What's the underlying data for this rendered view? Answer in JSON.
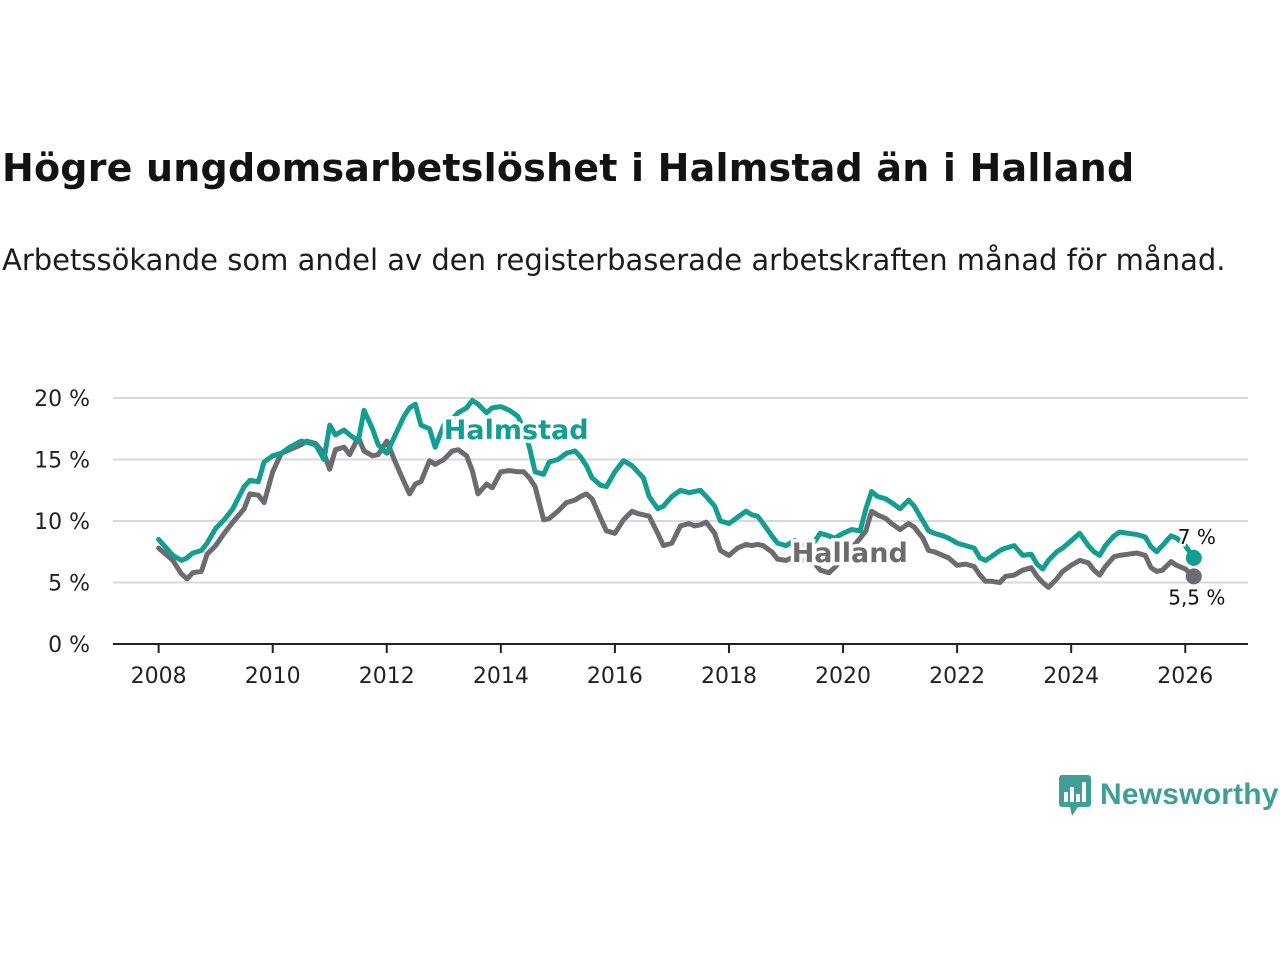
{
  "title": "Högre ungdomsarbetslöshet i Halmstad än i Halland",
  "subtitle": "Arbetssökande som andel av den registerbaserade arbetskraften månad för månad.",
  "brand": {
    "name": "Newsworthy",
    "color": "#3f9f97",
    "icon": "bar-chart-speech-bubble-icon"
  },
  "chart_data": {
    "type": "line",
    "title": "Högre ungdomsarbetslöshet i Halmstad än i Halland",
    "xlabel": "",
    "ylabel": "",
    "ylim": [
      0,
      20
    ],
    "xlim": [
      2007.2,
      2027.1
    ],
    "y_ticks": [
      0,
      5,
      10,
      15,
      20
    ],
    "y_tick_labels": [
      "0 %",
      "5 %",
      "10 %",
      "15 %",
      "20 %"
    ],
    "x_ticks": [
      2008,
      2010,
      2012,
      2014,
      2016,
      2018,
      2020,
      2022,
      2024,
      2026
    ],
    "x_tick_labels": [
      "2008",
      "2010",
      "2012",
      "2014",
      "2016",
      "2018",
      "2020",
      "2022",
      "2024",
      "2026"
    ],
    "grid": true,
    "series": [
      {
        "name": "Halland",
        "color": "#6b6b70",
        "end_label": "5,5 %",
        "points": [
          [
            2008.0,
            7.8
          ],
          [
            2008.25,
            6.8
          ],
          [
            2008.4,
            5.7
          ],
          [
            2008.5,
            5.3
          ],
          [
            2008.6,
            5.8
          ],
          [
            2008.75,
            5.9
          ],
          [
            2008.85,
            7.3
          ],
          [
            2009.0,
            8.0
          ],
          [
            2009.15,
            9.0
          ],
          [
            2009.3,
            9.9
          ],
          [
            2009.5,
            11.0
          ],
          [
            2009.6,
            12.2
          ],
          [
            2009.75,
            12.1
          ],
          [
            2009.85,
            11.5
          ],
          [
            2010.0,
            14.0
          ],
          [
            2010.15,
            15.5
          ],
          [
            2010.3,
            15.8
          ],
          [
            2010.5,
            16.2
          ],
          [
            2010.6,
            16.5
          ],
          [
            2010.75,
            16.3
          ],
          [
            2010.9,
            15.5
          ],
          [
            2011.0,
            14.2
          ],
          [
            2011.1,
            15.8
          ],
          [
            2011.25,
            16.0
          ],
          [
            2011.35,
            15.4
          ],
          [
            2011.5,
            16.8
          ],
          [
            2011.6,
            15.7
          ],
          [
            2011.75,
            15.3
          ],
          [
            2011.85,
            15.4
          ],
          [
            2012.0,
            16.5
          ],
          [
            2012.15,
            14.8
          ],
          [
            2012.3,
            13.2
          ],
          [
            2012.4,
            12.2
          ],
          [
            2012.5,
            13.0
          ],
          [
            2012.6,
            13.2
          ],
          [
            2012.75,
            14.9
          ],
          [
            2012.85,
            14.6
          ],
          [
            2013.0,
            15.0
          ],
          [
            2013.15,
            15.7
          ],
          [
            2013.25,
            15.8
          ],
          [
            2013.4,
            15.3
          ],
          [
            2013.5,
            14.1
          ],
          [
            2013.6,
            12.2
          ],
          [
            2013.75,
            13.0
          ],
          [
            2013.85,
            12.7
          ],
          [
            2014.0,
            14.0
          ],
          [
            2014.15,
            14.1
          ],
          [
            2014.3,
            14.0
          ],
          [
            2014.4,
            14.0
          ],
          [
            2014.5,
            13.5
          ],
          [
            2014.6,
            12.8
          ],
          [
            2014.75,
            10.1
          ],
          [
            2014.85,
            10.2
          ],
          [
            2015.0,
            10.8
          ],
          [
            2015.15,
            11.5
          ],
          [
            2015.3,
            11.7
          ],
          [
            2015.4,
            12.0
          ],
          [
            2015.5,
            12.2
          ],
          [
            2015.6,
            11.8
          ],
          [
            2015.75,
            10.2
          ],
          [
            2015.85,
            9.2
          ],
          [
            2016.0,
            9.0
          ],
          [
            2016.15,
            10.1
          ],
          [
            2016.3,
            10.8
          ],
          [
            2016.4,
            10.6
          ],
          [
            2016.5,
            10.5
          ],
          [
            2016.6,
            10.4
          ],
          [
            2016.75,
            9.0
          ],
          [
            2016.85,
            8.0
          ],
          [
            2017.0,
            8.2
          ],
          [
            2017.15,
            9.6
          ],
          [
            2017.3,
            9.8
          ],
          [
            2017.4,
            9.6
          ],
          [
            2017.5,
            9.7
          ],
          [
            2017.6,
            9.9
          ],
          [
            2017.75,
            9.0
          ],
          [
            2017.85,
            7.6
          ],
          [
            2018.0,
            7.2
          ],
          [
            2018.15,
            7.8
          ],
          [
            2018.3,
            8.1
          ],
          [
            2018.4,
            8.0
          ],
          [
            2018.5,
            8.1
          ],
          [
            2018.6,
            8.0
          ],
          [
            2018.75,
            7.5
          ],
          [
            2018.85,
            6.9
          ],
          [
            2019.0,
            6.8
          ],
          [
            2019.15,
            7.1
          ],
          [
            2019.3,
            6.8
          ],
          [
            2019.5,
            6.6
          ],
          [
            2019.6,
            6.0
          ],
          [
            2019.75,
            5.8
          ],
          [
            2019.85,
            6.2
          ],
          [
            2020.0,
            7.0
          ],
          [
            2020.15,
            7.8
          ],
          [
            2020.3,
            8.6
          ],
          [
            2020.4,
            9.2
          ],
          [
            2020.5,
            10.8
          ],
          [
            2020.6,
            10.5
          ],
          [
            2020.75,
            10.2
          ],
          [
            2020.85,
            9.8
          ],
          [
            2021.0,
            9.3
          ],
          [
            2021.15,
            9.8
          ],
          [
            2021.25,
            9.5
          ],
          [
            2021.4,
            8.6
          ],
          [
            2021.5,
            7.6
          ],
          [
            2021.6,
            7.5
          ],
          [
            2021.75,
            7.2
          ],
          [
            2021.85,
            7.0
          ],
          [
            2022.0,
            6.4
          ],
          [
            2022.15,
            6.5
          ],
          [
            2022.3,
            6.3
          ],
          [
            2022.4,
            5.6
          ],
          [
            2022.5,
            5.1
          ],
          [
            2022.6,
            5.1
          ],
          [
            2022.75,
            5.0
          ],
          [
            2022.85,
            5.5
          ],
          [
            2023.0,
            5.6
          ],
          [
            2023.15,
            6.0
          ],
          [
            2023.3,
            6.2
          ],
          [
            2023.4,
            5.5
          ],
          [
            2023.5,
            5.0
          ],
          [
            2023.6,
            4.6
          ],
          [
            2023.75,
            5.3
          ],
          [
            2023.85,
            5.9
          ],
          [
            2024.0,
            6.4
          ],
          [
            2024.15,
            6.8
          ],
          [
            2024.3,
            6.6
          ],
          [
            2024.4,
            6.0
          ],
          [
            2024.5,
            5.6
          ],
          [
            2024.6,
            6.3
          ],
          [
            2024.75,
            7.1
          ],
          [
            2024.85,
            7.2
          ],
          [
            2025.0,
            7.3
          ],
          [
            2025.15,
            7.4
          ],
          [
            2025.3,
            7.2
          ],
          [
            2025.4,
            6.2
          ],
          [
            2025.5,
            5.9
          ],
          [
            2025.6,
            6.0
          ],
          [
            2025.75,
            6.7
          ],
          [
            2025.85,
            6.4
          ],
          [
            2026.0,
            6.1
          ],
          [
            2026.15,
            5.5
          ]
        ]
      },
      {
        "name": "Halmstad",
        "color": "#149e91",
        "end_label": "7 %",
        "points": [
          [
            2008.0,
            8.5
          ],
          [
            2008.25,
            7.2
          ],
          [
            2008.4,
            6.8
          ],
          [
            2008.5,
            7.0
          ],
          [
            2008.6,
            7.4
          ],
          [
            2008.75,
            7.6
          ],
          [
            2008.85,
            8.2
          ],
          [
            2009.0,
            9.4
          ],
          [
            2009.15,
            10.1
          ],
          [
            2009.3,
            11.0
          ],
          [
            2009.5,
            12.8
          ],
          [
            2009.6,
            13.3
          ],
          [
            2009.75,
            13.2
          ],
          [
            2009.85,
            14.8
          ],
          [
            2010.0,
            15.3
          ],
          [
            2010.15,
            15.5
          ],
          [
            2010.3,
            16.0
          ],
          [
            2010.5,
            16.5
          ],
          [
            2010.6,
            16.4
          ],
          [
            2010.75,
            16.2
          ],
          [
            2010.9,
            15.0
          ],
          [
            2011.0,
            17.8
          ],
          [
            2011.1,
            17.0
          ],
          [
            2011.25,
            17.4
          ],
          [
            2011.35,
            17.0
          ],
          [
            2011.5,
            16.5
          ],
          [
            2011.6,
            19.0
          ],
          [
            2011.75,
            17.5
          ],
          [
            2011.85,
            16.2
          ],
          [
            2012.0,
            15.5
          ],
          [
            2012.15,
            17.0
          ],
          [
            2012.3,
            18.5
          ],
          [
            2012.4,
            19.2
          ],
          [
            2012.5,
            19.5
          ],
          [
            2012.6,
            17.8
          ],
          [
            2012.75,
            17.5
          ],
          [
            2012.85,
            16.0
          ],
          [
            2013.0,
            17.8
          ],
          [
            2013.15,
            18.3
          ],
          [
            2013.25,
            18.8
          ],
          [
            2013.4,
            19.2
          ],
          [
            2013.5,
            19.8
          ],
          [
            2013.6,
            19.5
          ],
          [
            2013.75,
            18.8
          ],
          [
            2013.85,
            19.2
          ],
          [
            2014.0,
            19.3
          ],
          [
            2014.15,
            19.0
          ],
          [
            2014.3,
            18.5
          ],
          [
            2014.4,
            17.5
          ],
          [
            2014.5,
            16.0
          ],
          [
            2014.6,
            14.0
          ],
          [
            2014.75,
            13.8
          ],
          [
            2014.85,
            14.8
          ],
          [
            2015.0,
            15.0
          ],
          [
            2015.15,
            15.5
          ],
          [
            2015.3,
            15.7
          ],
          [
            2015.4,
            15.2
          ],
          [
            2015.5,
            14.5
          ],
          [
            2015.6,
            13.5
          ],
          [
            2015.75,
            12.9
          ],
          [
            2015.85,
            12.8
          ],
          [
            2016.0,
            14.0
          ],
          [
            2016.15,
            14.9
          ],
          [
            2016.3,
            14.5
          ],
          [
            2016.4,
            14.0
          ],
          [
            2016.5,
            13.5
          ],
          [
            2016.6,
            12.0
          ],
          [
            2016.75,
            11.0
          ],
          [
            2016.85,
            11.2
          ],
          [
            2017.0,
            12.0
          ],
          [
            2017.15,
            12.5
          ],
          [
            2017.3,
            12.3
          ],
          [
            2017.4,
            12.4
          ],
          [
            2017.5,
            12.5
          ],
          [
            2017.6,
            12.0
          ],
          [
            2017.75,
            11.2
          ],
          [
            2017.85,
            10.0
          ],
          [
            2018.0,
            9.8
          ],
          [
            2018.15,
            10.3
          ],
          [
            2018.3,
            10.8
          ],
          [
            2018.4,
            10.5
          ],
          [
            2018.5,
            10.4
          ],
          [
            2018.6,
            9.8
          ],
          [
            2018.75,
            8.8
          ],
          [
            2018.85,
            8.2
          ],
          [
            2019.0,
            8.0
          ],
          [
            2019.15,
            8.4
          ],
          [
            2019.3,
            8.0
          ],
          [
            2019.5,
            8.3
          ],
          [
            2019.6,
            9.0
          ],
          [
            2019.75,
            8.8
          ],
          [
            2019.85,
            8.6
          ],
          [
            2020.0,
            9.0
          ],
          [
            2020.15,
            9.3
          ],
          [
            2020.3,
            9.2
          ],
          [
            2020.4,
            11.0
          ],
          [
            2020.5,
            12.4
          ],
          [
            2020.6,
            12.0
          ],
          [
            2020.75,
            11.8
          ],
          [
            2020.85,
            11.5
          ],
          [
            2021.0,
            11.0
          ],
          [
            2021.15,
            11.7
          ],
          [
            2021.25,
            11.2
          ],
          [
            2021.4,
            10.0
          ],
          [
            2021.5,
            9.2
          ],
          [
            2021.6,
            9.0
          ],
          [
            2021.75,
            8.8
          ],
          [
            2021.85,
            8.6
          ],
          [
            2022.0,
            8.2
          ],
          [
            2022.15,
            8.0
          ],
          [
            2022.3,
            7.8
          ],
          [
            2022.4,
            7.0
          ],
          [
            2022.5,
            6.8
          ],
          [
            2022.6,
            7.1
          ],
          [
            2022.75,
            7.6
          ],
          [
            2022.85,
            7.8
          ],
          [
            2023.0,
            8.0
          ],
          [
            2023.15,
            7.2
          ],
          [
            2023.3,
            7.3
          ],
          [
            2023.4,
            6.5
          ],
          [
            2023.5,
            6.1
          ],
          [
            2023.6,
            6.8
          ],
          [
            2023.75,
            7.5
          ],
          [
            2023.85,
            7.8
          ],
          [
            2024.0,
            8.4
          ],
          [
            2024.15,
            9.0
          ],
          [
            2024.3,
            8.0
          ],
          [
            2024.4,
            7.5
          ],
          [
            2024.5,
            7.2
          ],
          [
            2024.6,
            8.0
          ],
          [
            2024.75,
            8.8
          ],
          [
            2024.85,
            9.1
          ],
          [
            2025.0,
            9.0
          ],
          [
            2025.15,
            8.9
          ],
          [
            2025.3,
            8.7
          ],
          [
            2025.4,
            7.9
          ],
          [
            2025.5,
            7.5
          ],
          [
            2025.6,
            8.0
          ],
          [
            2025.75,
            8.8
          ],
          [
            2025.85,
            8.6
          ],
          [
            2026.0,
            8.0
          ],
          [
            2026.15,
            7.0
          ]
        ]
      }
    ],
    "annotations": [
      {
        "series": "Halmstad",
        "label": "Halmstad",
        "at": [
          2013.0,
          17.5
        ]
      },
      {
        "series": "Halland",
        "label": "Halland",
        "at": [
          2019.1,
          7.5
        ]
      }
    ]
  }
}
